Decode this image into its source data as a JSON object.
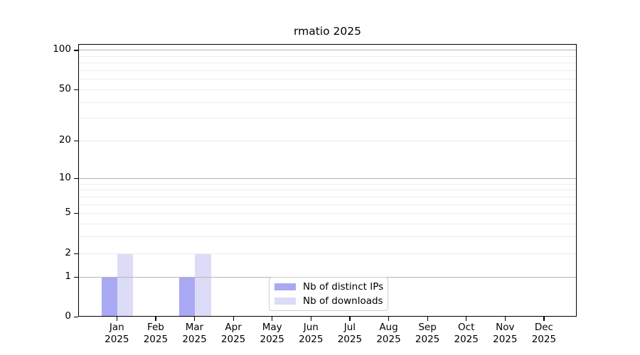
{
  "figure": {
    "background": "#ffffff",
    "text_color": "#000000"
  },
  "chart_data": {
    "type": "bar",
    "title": "rmatio 2025",
    "categories": [
      "Jan\n2025",
      "Feb\n2025",
      "Mar\n2025",
      "Apr\n2025",
      "May\n2025",
      "Jun\n2025",
      "Jul\n2025",
      "Aug\n2025",
      "Sep\n2025",
      "Oct\n2025",
      "Nov\n2025",
      "Dec\n2025"
    ],
    "series": [
      {
        "name": "Nb of distinct IPs",
        "color": "#a9a9f3",
        "values": [
          1,
          0,
          1,
          0,
          0,
          0,
          0,
          0,
          0,
          0,
          0,
          0
        ]
      },
      {
        "name": "Nb of downloads",
        "color": "#dcdcf8",
        "values": [
          2,
          0,
          2,
          0,
          0,
          0,
          0,
          0,
          0,
          0,
          0,
          0
        ]
      }
    ],
    "xlabel": "",
    "ylabel": "",
    "yscale": "log1p",
    "ylim": [
      0,
      111
    ],
    "yticks": [
      0,
      1,
      2,
      5,
      10,
      20,
      50,
      100
    ],
    "grid": {
      "shown": true,
      "minor_values": [
        2,
        3,
        4,
        5,
        6,
        7,
        8,
        9,
        20,
        30,
        40,
        50,
        60,
        70,
        80,
        90
      ],
      "major_values": [
        1,
        10,
        100
      ],
      "minor_color": "#ececec",
      "major_color": "#b5b5b5"
    },
    "legend": {
      "position": "inside-bottom-center",
      "border_color": "#cccccc"
    },
    "axis_color": "#000000"
  }
}
